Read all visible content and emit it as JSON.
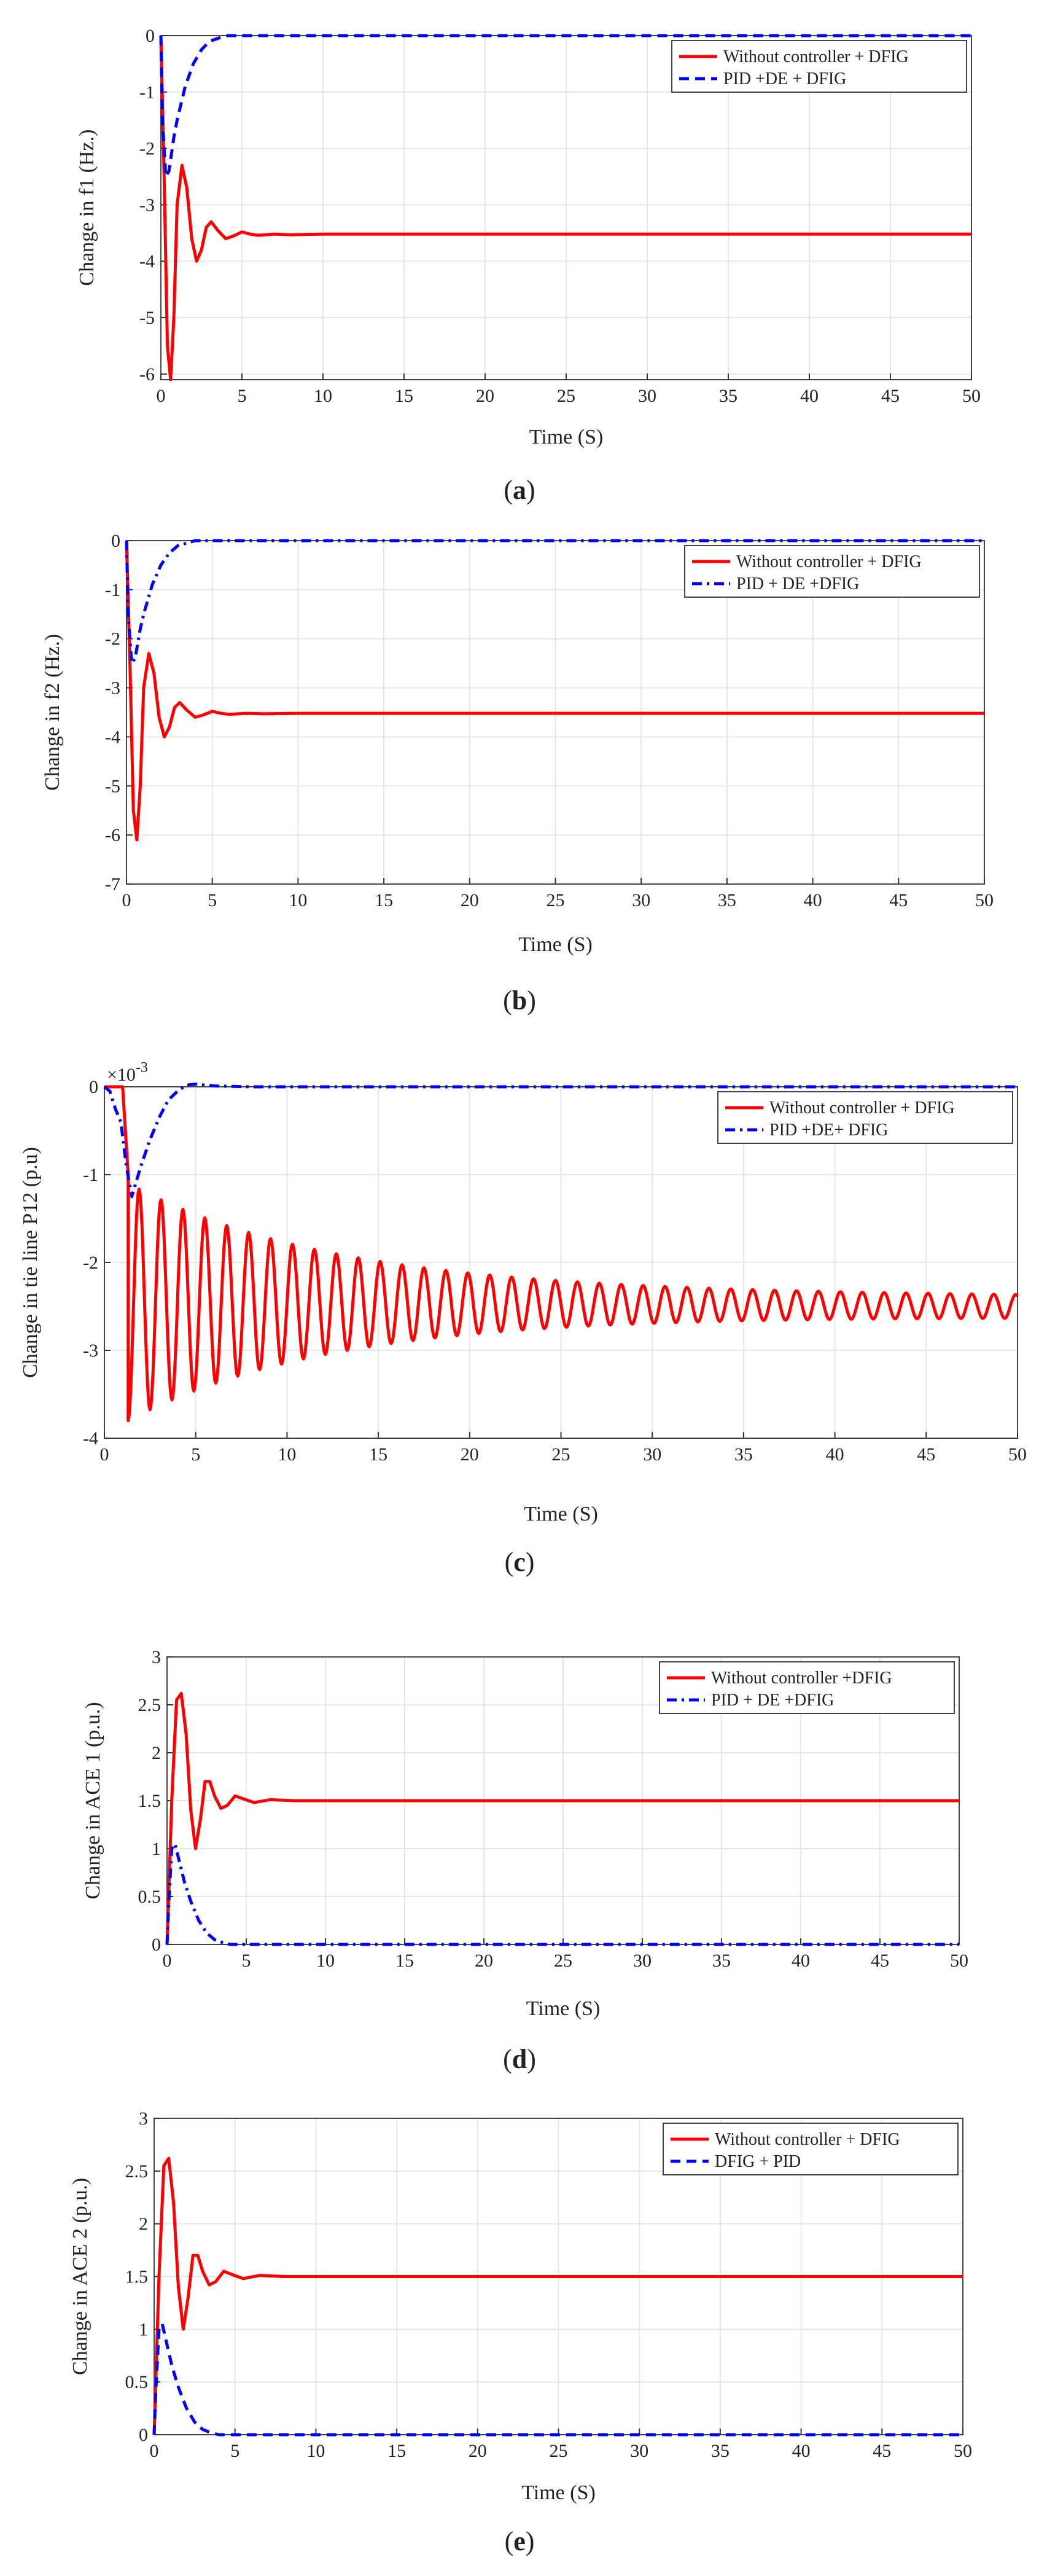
{
  "figure": {
    "panels": [
      "(a)",
      "(b)",
      "(c)",
      "(d)",
      "(e)"
    ]
  },
  "chart_data": [
    {
      "id": "a",
      "type": "line",
      "panel_label_prefix": "(",
      "panel_letter": "a",
      "panel_label_suffix": ")",
      "xlabel": "Time (S)",
      "ylabel": "Change in f1 (Hz.)",
      "xlim": [
        0,
        50
      ],
      "ylim": [
        -6.1,
        0
      ],
      "xticks": [
        0,
        5,
        10,
        15,
        20,
        25,
        30,
        35,
        40,
        45,
        50
      ],
      "yticks": [
        0,
        -1,
        -2,
        -3,
        -4,
        -5,
        -6
      ],
      "exponent_label": "",
      "grid": true,
      "legend": "top-right",
      "series": [
        {
          "name": "Without controller + DFIG",
          "color": "#ff0000",
          "style": "solid",
          "x": [
            0,
            0.2,
            0.4,
            0.6,
            0.8,
            1.0,
            1.3,
            1.6,
            1.9,
            2.2,
            2.5,
            2.8,
            3.1,
            3.5,
            4,
            4.5,
            5,
            5.5,
            6,
            7,
            8,
            10,
            15,
            20,
            30,
            40,
            50
          ],
          "y": [
            0,
            -2.5,
            -5.5,
            -6.1,
            -5.0,
            -3.0,
            -2.3,
            -2.7,
            -3.6,
            -4.0,
            -3.8,
            -3.4,
            -3.3,
            -3.45,
            -3.6,
            -3.55,
            -3.48,
            -3.52,
            -3.54,
            -3.52,
            -3.53,
            -3.52,
            -3.52,
            -3.52,
            -3.52,
            -3.52,
            -3.52
          ]
        },
        {
          "name": "PID +DE + DFIG",
          "color": "#0000ff",
          "style": "dashed",
          "x": [
            0,
            0.1,
            0.3,
            0.5,
            0.8,
            1.0,
            1.5,
            2.0,
            2.5,
            3.0,
            3.5,
            4.0,
            5,
            10,
            20,
            30,
            40,
            50
          ],
          "y": [
            0,
            -1.5,
            -2.5,
            -2.4,
            -1.8,
            -1.5,
            -0.9,
            -0.5,
            -0.25,
            -0.1,
            -0.05,
            0,
            0,
            0,
            0,
            0,
            0,
            0
          ]
        }
      ]
    },
    {
      "id": "b",
      "type": "line",
      "panel_label_prefix": "(",
      "panel_letter": "b",
      "panel_label_suffix": ")",
      "xlabel": "Time (S)",
      "ylabel": "Change in f2 (Hz.)",
      "xlim": [
        0,
        50
      ],
      "ylim": [
        -7,
        0
      ],
      "xticks": [
        0,
        5,
        10,
        15,
        20,
        25,
        30,
        35,
        40,
        45,
        50
      ],
      "yticks": [
        0,
        -1,
        -2,
        -3,
        -4,
        -5,
        -6,
        -7
      ],
      "exponent_label": "",
      "grid": true,
      "legend": "top-right",
      "series": [
        {
          "name": "Without controller + DFIG",
          "color": "#ff0000",
          "style": "solid",
          "x": [
            0,
            0.2,
            0.4,
            0.6,
            0.8,
            1.0,
            1.3,
            1.6,
            1.9,
            2.2,
            2.5,
            2.8,
            3.1,
            3.5,
            4,
            4.5,
            5,
            5.5,
            6,
            7,
            8,
            10,
            15,
            20,
            30,
            40,
            50
          ],
          "y": [
            0,
            -2.5,
            -5.5,
            -6.1,
            -5.0,
            -3.0,
            -2.3,
            -2.7,
            -3.6,
            -4.0,
            -3.8,
            -3.4,
            -3.3,
            -3.45,
            -3.6,
            -3.55,
            -3.48,
            -3.52,
            -3.54,
            -3.52,
            -3.53,
            -3.52,
            -3.52,
            -3.52,
            -3.52,
            -3.52,
            -3.52
          ]
        },
        {
          "name": "PID + DE +DFIG",
          "color": "#0000ff",
          "style": "dashdot",
          "x": [
            0,
            0.1,
            0.3,
            0.5,
            0.8,
            1.0,
            1.5,
            2.0,
            2.5,
            3.0,
            3.5,
            4.0,
            5,
            10,
            20,
            30,
            40,
            50
          ],
          "y": [
            0,
            -1.5,
            -2.5,
            -2.4,
            -1.8,
            -1.5,
            -0.9,
            -0.5,
            -0.25,
            -0.1,
            -0.05,
            0,
            0,
            0,
            0,
            0,
            0,
            0
          ]
        }
      ]
    },
    {
      "id": "c",
      "type": "line",
      "panel_label_prefix": "(",
      "panel_letter": "c",
      "panel_label_suffix": ")",
      "xlabel": "Time (S)",
      "ylabel": "Change in tie line P12 (p.u)",
      "xlim": [
        0,
        50
      ],
      "ylim": [
        -4,
        0
      ],
      "xticks": [
        0,
        5,
        10,
        15,
        20,
        25,
        30,
        35,
        40,
        45,
        50
      ],
      "yticks": [
        0,
        -1,
        -2,
        -3,
        -4
      ],
      "exponent_label": "×10",
      "exponent_power": "-3",
      "grid": true,
      "legend": "top-right",
      "oscillation": {
        "start": 1.3,
        "period": 1.2,
        "mean_start": -2.45,
        "mean_end": -2.5,
        "amp_start": 1.35,
        "amp_end": 0.12,
        "decay": 0.09
      },
      "series": [
        {
          "name": "Without controller + DFIG",
          "color": "#ff0000",
          "style": "solid",
          "generated": "oscillation"
        },
        {
          "name": "PID +DE+ DFIG",
          "color": "#0000ff",
          "style": "dashdot",
          "x": [
            0,
            0.3,
            0.6,
            0.9,
            1.2,
            1.5,
            2.0,
            2.5,
            3.0,
            3.5,
            4.0,
            4.5,
            5,
            6,
            8,
            10,
            20,
            30,
            40,
            50
          ],
          "y": [
            0,
            -0.05,
            -0.25,
            -0.4,
            -0.9,
            -1.25,
            -0.9,
            -0.6,
            -0.35,
            -0.15,
            -0.05,
            0.02,
            0.03,
            0.01,
            0,
            0,
            0,
            0,
            0,
            0
          ]
        }
      ]
    },
    {
      "id": "d",
      "type": "line",
      "panel_label_prefix": "(",
      "panel_letter": "d",
      "panel_label_suffix": ")",
      "xlabel": "Time (S)",
      "ylabel": "Change in ACE 1 (p.u.)",
      "xlim": [
        0,
        50
      ],
      "ylim": [
        0,
        3
      ],
      "xticks": [
        0,
        5,
        10,
        15,
        20,
        25,
        30,
        35,
        40,
        45,
        50
      ],
      "yticks": [
        0,
        0.5,
        1,
        1.5,
        2,
        2.5,
        3
      ],
      "exponent_label": "",
      "grid": true,
      "legend": "top-right",
      "series": [
        {
          "name": "Without controller +DFIG",
          "color": "#ff0000",
          "style": "solid",
          "x": [
            0,
            0.3,
            0.6,
            0.9,
            1.2,
            1.5,
            1.8,
            2.1,
            2.4,
            2.7,
            3.0,
            3.4,
            3.8,
            4.3,
            4.8,
            5.5,
            6.5,
            8,
            10,
            20,
            30,
            40,
            50
          ],
          "y": [
            0,
            1.5,
            2.55,
            2.62,
            2.2,
            1.4,
            1.0,
            1.3,
            1.7,
            1.7,
            1.55,
            1.42,
            1.45,
            1.55,
            1.52,
            1.48,
            1.51,
            1.5,
            1.5,
            1.5,
            1.5,
            1.5,
            1.5
          ]
        },
        {
          "name": "PID + DE +DFIG",
          "color": "#0000ff",
          "style": "dashdot",
          "x": [
            0,
            0.1,
            0.3,
            0.5,
            0.8,
            1.1,
            1.5,
            2.0,
            2.5,
            3.0,
            3.5,
            4.0,
            5,
            10,
            20,
            30,
            40,
            50
          ],
          "y": [
            0,
            0.4,
            1.0,
            1.05,
            0.85,
            0.65,
            0.45,
            0.25,
            0.12,
            0.05,
            0.02,
            0,
            0,
            0,
            0,
            0,
            0,
            0
          ]
        }
      ]
    },
    {
      "id": "e",
      "type": "line",
      "panel_label_prefix": "(",
      "panel_letter": "e",
      "panel_label_suffix": ")",
      "xlabel": "Time (S)",
      "ylabel": "Change in ACE 2 (p.u.)",
      "xlim": [
        0,
        50
      ],
      "ylim": [
        0,
        3
      ],
      "xticks": [
        0,
        5,
        10,
        15,
        20,
        25,
        30,
        35,
        40,
        45,
        50
      ],
      "yticks": [
        0,
        0.5,
        1,
        1.5,
        2,
        2.5,
        3
      ],
      "exponent_label": "",
      "grid": true,
      "legend": "top-right",
      "series": [
        {
          "name": "Without controller + DFIG",
          "color": "#ff0000",
          "style": "solid",
          "x": [
            0,
            0.3,
            0.6,
            0.9,
            1.2,
            1.5,
            1.8,
            2.1,
            2.4,
            2.7,
            3.0,
            3.4,
            3.8,
            4.3,
            4.8,
            5.5,
            6.5,
            8,
            10,
            20,
            30,
            40,
            50
          ],
          "y": [
            0,
            1.5,
            2.55,
            2.62,
            2.2,
            1.4,
            1.0,
            1.3,
            1.7,
            1.7,
            1.55,
            1.42,
            1.45,
            1.55,
            1.52,
            1.48,
            1.51,
            1.5,
            1.5,
            1.5,
            1.5,
            1.5,
            1.5
          ]
        },
        {
          "name": "DFIG + PID",
          "color": "#0000ff",
          "style": "dashed",
          "x": [
            0,
            0.1,
            0.3,
            0.5,
            0.8,
            1.1,
            1.5,
            2.0,
            2.5,
            3.0,
            3.5,
            4.0,
            5,
            10,
            20,
            30,
            40,
            50
          ],
          "y": [
            0,
            0.4,
            1.0,
            1.05,
            0.85,
            0.65,
            0.45,
            0.25,
            0.12,
            0.05,
            0.02,
            0,
            0,
            0,
            0,
            0,
            0,
            0
          ]
        }
      ]
    }
  ]
}
